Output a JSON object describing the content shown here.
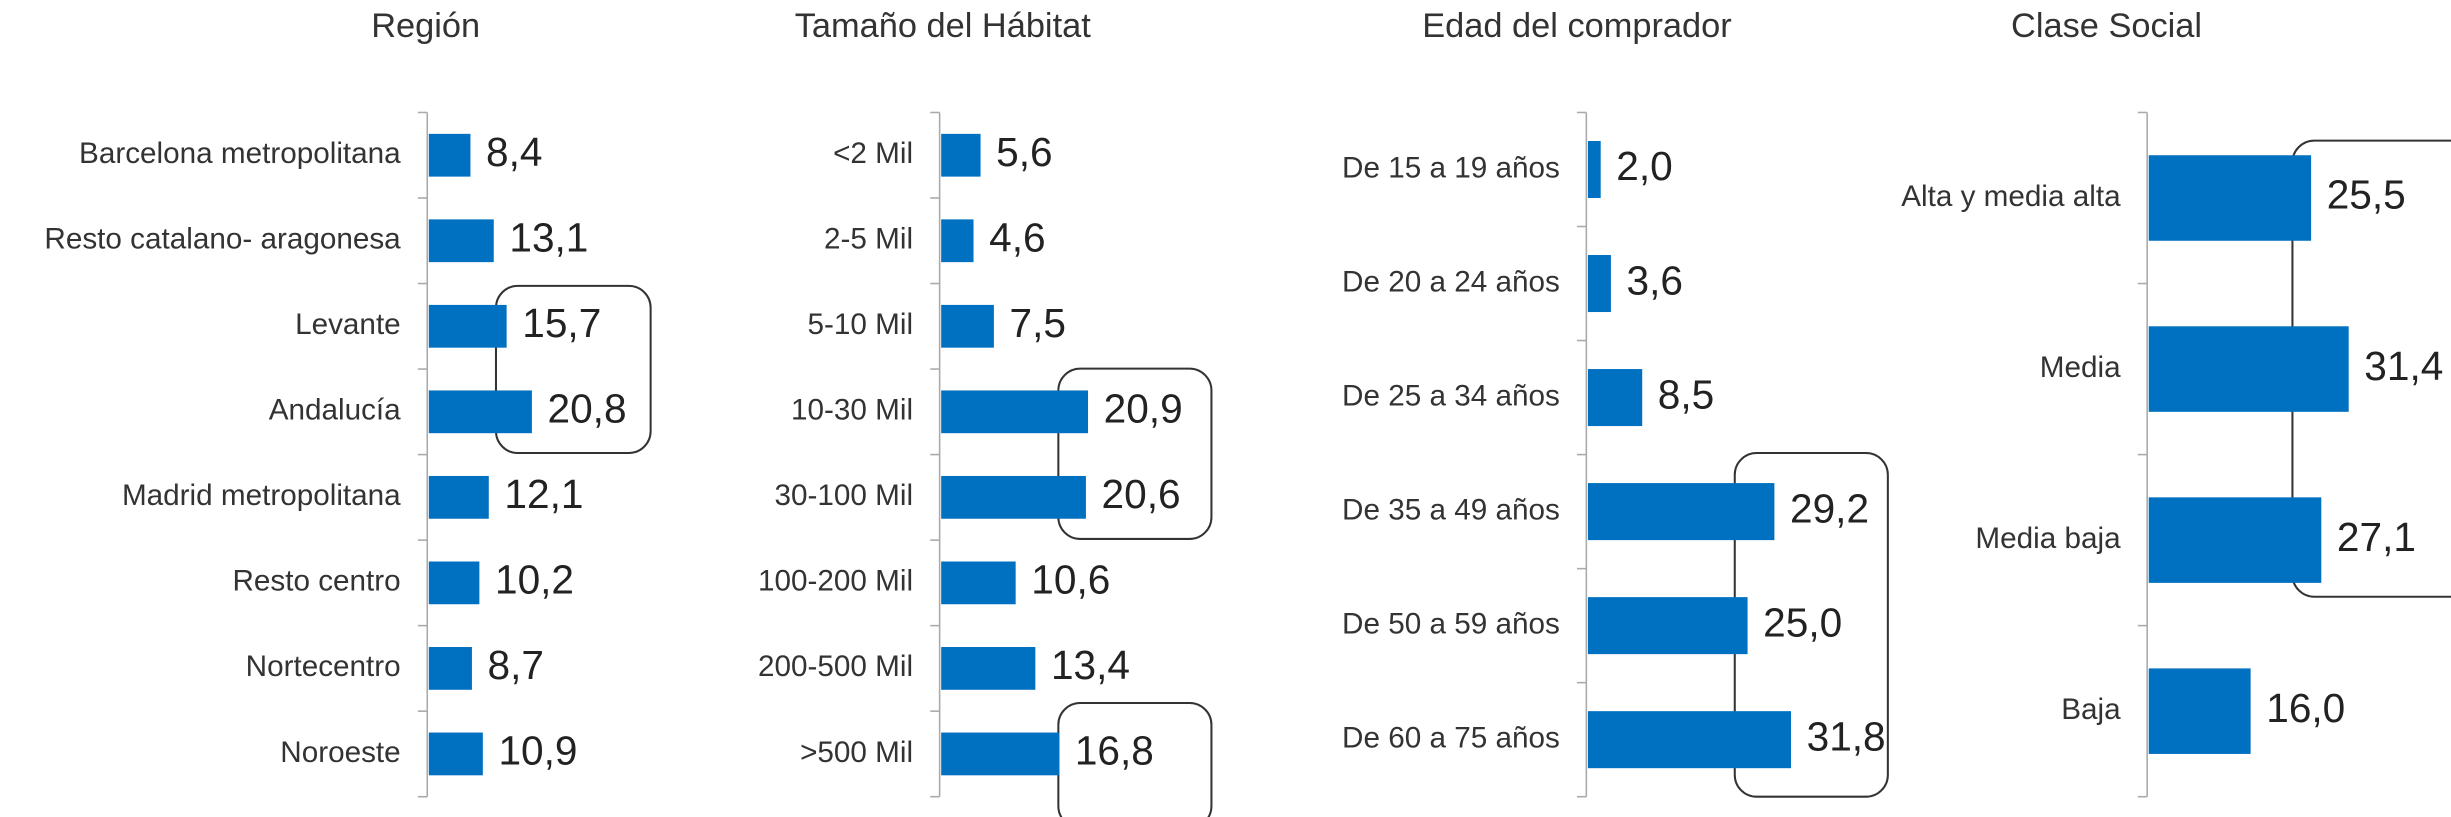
{
  "chart_data": [
    {
      "type": "bar",
      "title": "Región",
      "color": "#0070c0",
      "categories": [
        "Barcelona metropolitana",
        "Resto catalano- aragonesa",
        "Levante",
        "Andalucía",
        "Madrid metropolitana",
        "Resto centro",
        "Nortecentro",
        "Noroeste"
      ],
      "values": [
        8.4,
        13.1,
        15.7,
        20.8,
        12.1,
        10.2,
        8.7,
        10.9
      ],
      "value_labels": [
        "8,4",
        "13,1",
        "15,7",
        "20,8",
        "12,1",
        "10,2",
        "8,7",
        "10,9"
      ]
    },
    {
      "type": "bar",
      "title": "Tamaño del Hábitat",
      "color": "#0070c0",
      "categories": [
        "<2 Mil",
        "2-5 Mil",
        "5-10 Mil",
        "10-30 Mil",
        "30-100 Mil",
        "100-200 Mil",
        "200-500 Mil",
        ">500 Mil"
      ],
      "values": [
        5.6,
        4.6,
        7.5,
        20.9,
        20.6,
        10.6,
        13.4,
        16.8
      ],
      "value_labels": [
        "5,6",
        "4,6",
        "7,5",
        "20,9",
        "20,6",
        "10,6",
        "13,4",
        "16,8"
      ]
    },
    {
      "type": "bar",
      "title": "Edad del comprador",
      "color": "#0070c0",
      "categories": [
        "De 15 a 19 años",
        "De 20 a 24 años",
        "De 25 a 34 años",
        "De 35 a 49 años",
        "De 50 a 59 años",
        "De 60 a 75 años"
      ],
      "values": [
        2.0,
        3.6,
        8.5,
        29.2,
        25.0,
        31.8
      ],
      "value_labels": [
        "2,0",
        "3,6",
        "8,5",
        "29,2",
        "25,0",
        "31,8"
      ]
    },
    {
      "type": "bar",
      "title": "Clase Social",
      "color": "#0070c0",
      "categories": [
        "Alta y media alta",
        "Media",
        "Media baja",
        "Baja"
      ],
      "values": [
        25.5,
        31.4,
        27.1,
        16.0
      ],
      "value_labels": [
        "25,5",
        "31,4",
        "27,1",
        "16,0"
      ]
    }
  ]
}
